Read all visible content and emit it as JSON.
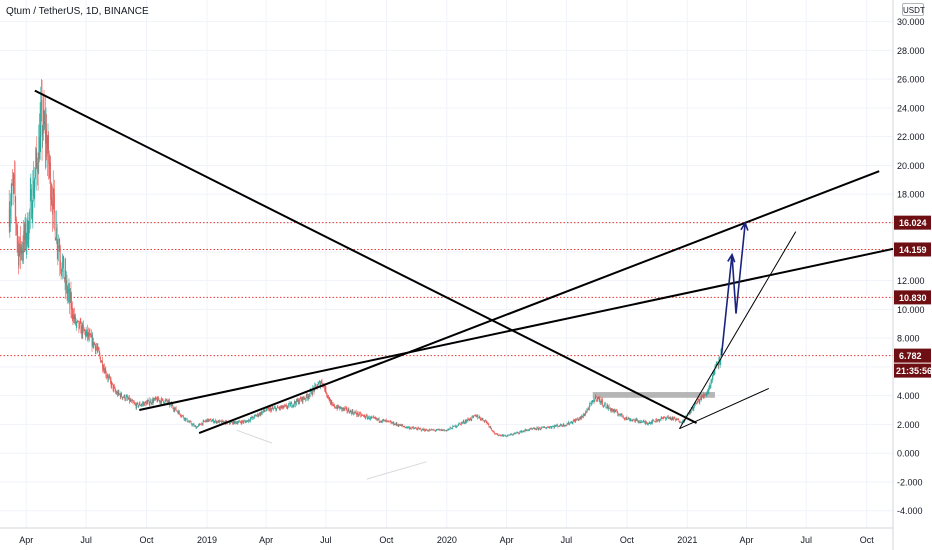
{
  "header": {
    "title": "Qtum / TetherUS, 1D, BINANCE",
    "currency_button": "USDT"
  },
  "colors": {
    "up": "#26a69a",
    "down": "#ef5350",
    "drawing": "#000000",
    "arrow": "#1a237e",
    "hline": "#e53935",
    "label_bg": "#6d0f13",
    "zone": "#9e9e9e"
  },
  "chart_data": {
    "type": "candlestick",
    "title": "Qtum / TetherUS, 1D, BINANCE",
    "xlabel": "",
    "ylabel": "",
    "ylim": [
      -5.2,
      31.5
    ],
    "xlim": [
      "2018-02-20",
      "2021-11-10"
    ],
    "grid": true,
    "y_ticks": [
      "-4.000",
      "-2.000",
      "0.000",
      "2.000",
      "4.000",
      "6.000",
      "8.000",
      "10.000",
      "12.000",
      "14.000",
      "16.000",
      "18.000",
      "20.000",
      "22.000",
      "24.000",
      "26.000",
      "28.000",
      "30.000"
    ],
    "x_ticks": [
      {
        "label": "Apr",
        "date": "2018-04-01"
      },
      {
        "label": "Jul",
        "date": "2018-07-01"
      },
      {
        "label": "Oct",
        "date": "2018-10-01"
      },
      {
        "label": "2019",
        "date": "2019-01-01"
      },
      {
        "label": "Apr",
        "date": "2019-04-01"
      },
      {
        "label": "Jul",
        "date": "2019-07-01"
      },
      {
        "label": "Oct",
        "date": "2019-10-01"
      },
      {
        "label": "2020",
        "date": "2020-01-01"
      },
      {
        "label": "Apr",
        "date": "2020-04-01"
      },
      {
        "label": "Jul",
        "date": "2020-07-01"
      },
      {
        "label": "Oct",
        "date": "2020-10-01"
      },
      {
        "label": "2021",
        "date": "2021-01-01"
      },
      {
        "label": "Apr",
        "date": "2021-04-01"
      },
      {
        "label": "Jul",
        "date": "2021-07-01"
      },
      {
        "label": "Oct",
        "date": "2021-10-01"
      }
    ],
    "price_path": [
      [
        "2018-03-06",
        17.0
      ],
      [
        "2018-03-13",
        18.5
      ],
      [
        "2018-03-20",
        14.0
      ],
      [
        "2018-03-27",
        14.5
      ],
      [
        "2018-04-03",
        15.5
      ],
      [
        "2018-04-10",
        18.0
      ],
      [
        "2018-04-17",
        20.0
      ],
      [
        "2018-04-24",
        23.0
      ],
      [
        "2018-05-01",
        22.0
      ],
      [
        "2018-05-08",
        19.0
      ],
      [
        "2018-05-15",
        16.0
      ],
      [
        "2018-05-22",
        14.0
      ],
      [
        "2018-06-01",
        11.5
      ],
      [
        "2018-06-15",
        9.0
      ],
      [
        "2018-07-01",
        8.3
      ],
      [
        "2018-07-15",
        7.5
      ],
      [
        "2018-08-01",
        5.5
      ],
      [
        "2018-08-15",
        4.2
      ],
      [
        "2018-09-01",
        3.8
      ],
      [
        "2018-09-15",
        3.3
      ],
      [
        "2018-10-01",
        3.5
      ],
      [
        "2018-10-15",
        3.7
      ],
      [
        "2018-11-01",
        3.6
      ],
      [
        "2018-11-15",
        3.0
      ],
      [
        "2018-12-01",
        2.3
      ],
      [
        "2018-12-15",
        1.8
      ],
      [
        "2019-01-01",
        2.3
      ],
      [
        "2019-02-01",
        2.1
      ],
      [
        "2019-03-01",
        2.2
      ],
      [
        "2019-04-01",
        3.0
      ],
      [
        "2019-05-01",
        3.2
      ],
      [
        "2019-06-01",
        3.9
      ],
      [
        "2019-06-25",
        5.0
      ],
      [
        "2019-07-10",
        3.3
      ],
      [
        "2019-08-01",
        3.0
      ],
      [
        "2019-09-01",
        2.5
      ],
      [
        "2019-10-01",
        2.2
      ],
      [
        "2019-11-01",
        1.8
      ],
      [
        "2019-12-01",
        1.6
      ],
      [
        "2020-01-01",
        1.6
      ],
      [
        "2020-02-15",
        2.6
      ],
      [
        "2020-03-01",
        2.2
      ],
      [
        "2020-03-15",
        1.3
      ],
      [
        "2020-04-01",
        1.2
      ],
      [
        "2020-05-01",
        1.6
      ],
      [
        "2020-06-01",
        1.8
      ],
      [
        "2020-07-01",
        2.0
      ],
      [
        "2020-07-25",
        2.5
      ],
      [
        "2020-08-15",
        3.9
      ],
      [
        "2020-09-01",
        3.2
      ],
      [
        "2020-10-01",
        2.4
      ],
      [
        "2020-11-01",
        2.1
      ],
      [
        "2020-12-01",
        2.5
      ],
      [
        "2020-12-25",
        2.2
      ],
      [
        "2021-01-15",
        3.5
      ],
      [
        "2021-02-01",
        4.3
      ],
      [
        "2021-02-15",
        6.3
      ],
      [
        "2021-02-22",
        6.8
      ]
    ],
    "drawings": {
      "trendlines": [
        {
          "from": [
            "2018-04-14",
            25.2
          ],
          "to": [
            "2021-01-15",
            2.1
          ]
        },
        {
          "from": [
            "2018-09-20",
            3.0
          ],
          "to": [
            "2021-11-10",
            14.2
          ]
        },
        {
          "from": [
            "2018-12-20",
            1.4
          ],
          "to": [
            "2021-10-20",
            19.6
          ]
        },
        {
          "from": [
            "2020-12-20",
            1.7
          ],
          "to": [
            "2021-06-15",
            15.4
          ]
        },
        {
          "from": [
            "2020-12-20",
            1.7
          ],
          "to": [
            "2021-05-05",
            4.5
          ]
        }
      ],
      "arrow_path": [
        [
          "2021-02-22",
          6.8
        ],
        [
          "2021-03-10",
          13.8
        ],
        [
          "2021-03-16",
          9.7
        ],
        [
          "2021-03-30",
          16.0
        ]
      ],
      "resistance_zone": {
        "from": "2020-08-10",
        "to": "2021-02-12",
        "low": 3.85,
        "high": 4.25
      },
      "faint_lines": [
        {
          "from": [
            "2019-02-15",
            1.6
          ],
          "to": [
            "2019-04-10",
            0.7
          ]
        },
        {
          "from": [
            "2019-09-01",
            -1.8
          ],
          "to": [
            "2019-12-01",
            -0.6
          ]
        }
      ]
    },
    "horizontal_levels": [
      {
        "value": 16.024,
        "label": "16.024"
      },
      {
        "value": 14.159,
        "label": "14.159"
      },
      {
        "value": 10.83,
        "label": "10.830"
      },
      {
        "value": 6.782,
        "label": "6.782"
      }
    ],
    "countdown": "21:35:56"
  }
}
